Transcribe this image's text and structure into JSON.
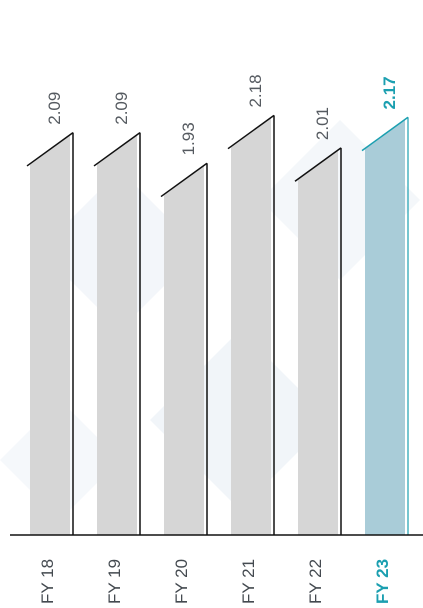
{
  "chart_data": {
    "type": "bar",
    "categories": [
      "FY 18",
      "FY 19",
      "FY 20",
      "FY 21",
      "FY 22",
      "FY 23"
    ],
    "values": [
      2.09,
      2.09,
      1.93,
      2.18,
      2.01,
      2.17
    ],
    "value_labels": [
      "2.09",
      "2.09",
      "1.93",
      "2.18",
      "2.01",
      "2.17"
    ],
    "highlight_index": 5,
    "title": "",
    "xlabel": "",
    "ylabel": "",
    "ylim": [
      0,
      2.2
    ],
    "grid": false,
    "legend": "none",
    "colors": {
      "bar": "#d6d6d6",
      "highlight_bar": "#a9ccd8",
      "highlight_text": "#1b9fb0",
      "highlight_line": "#1b9fb0",
      "line": "#111111",
      "baseline": "#111111",
      "text": "#555a60",
      "background_pattern": "#eef3f8"
    }
  }
}
